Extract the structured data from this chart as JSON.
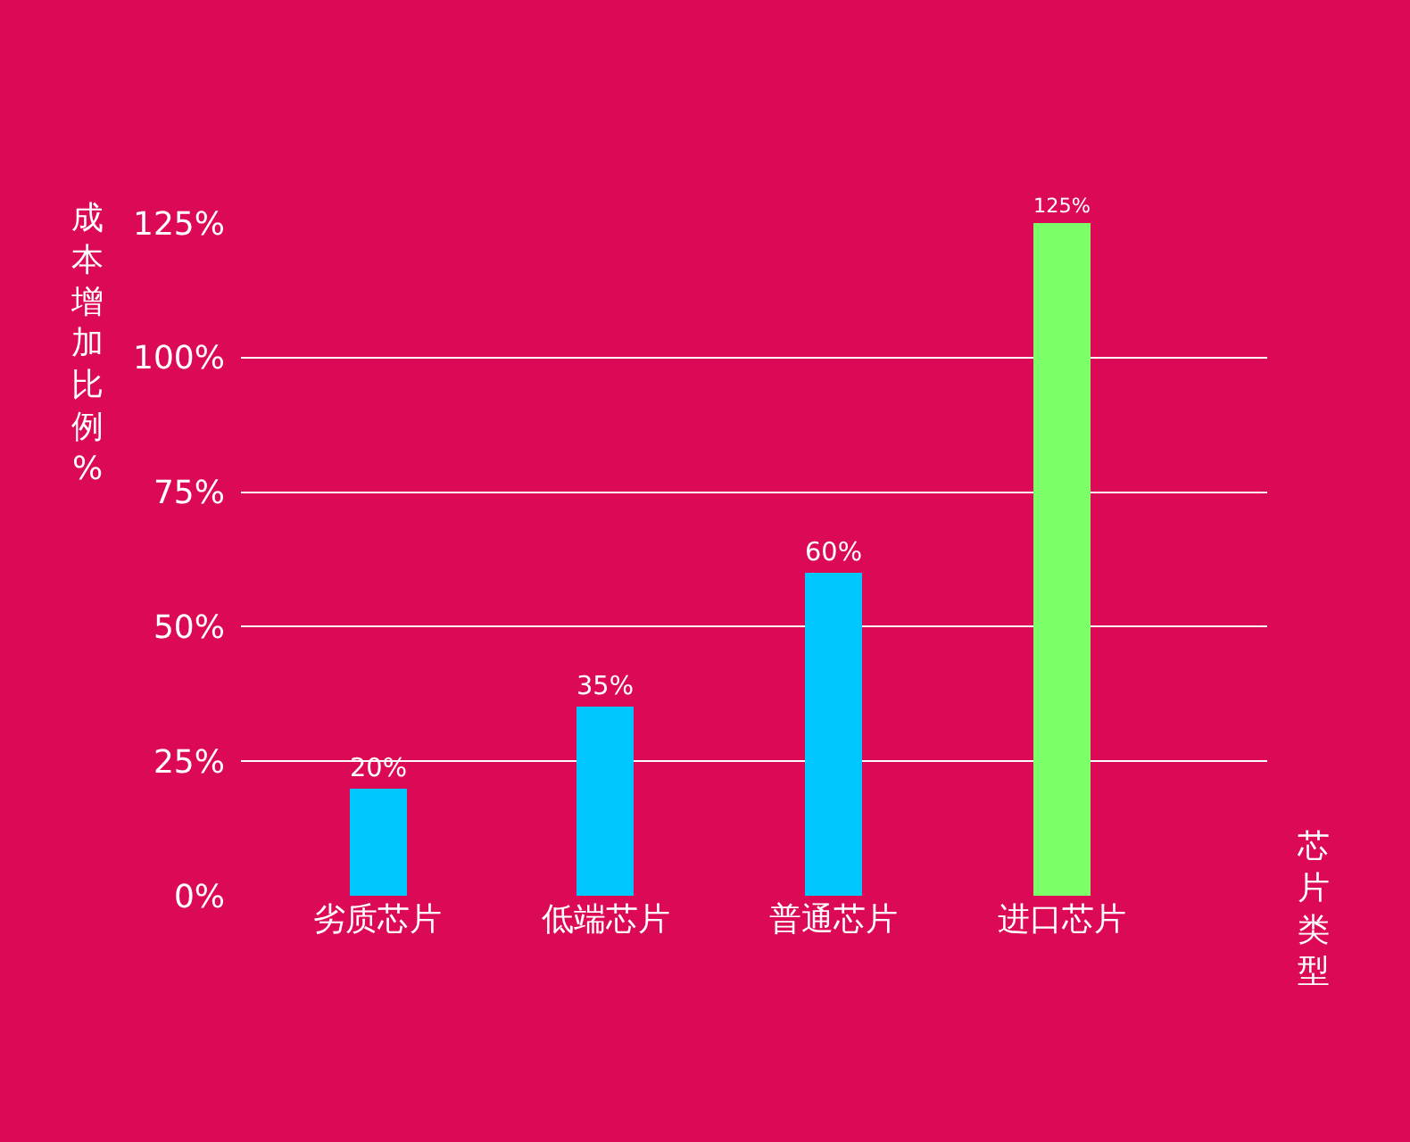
{
  "chart_data": {
    "type": "bar",
    "categories": [
      "劣质芯片",
      "低端芯片",
      "普通芯片",
      "进口芯片"
    ],
    "values": [
      20,
      35,
      60,
      125
    ],
    "value_labels": [
      "20%",
      "35%",
      "60%",
      "125%"
    ],
    "colors": [
      "#00c8ff",
      "#00c8ff",
      "#00c8ff",
      "#7dff6a"
    ],
    "ylabel": "成本增加比例%",
    "xlabel": "芯片类型",
    "ylim": [
      0,
      125
    ],
    "yticks": [
      {
        "value": 0,
        "label": "0%"
      },
      {
        "value": 25,
        "label": "25%"
      },
      {
        "value": 50,
        "label": "50%"
      },
      {
        "value": 75,
        "label": "75%"
      },
      {
        "value": 100,
        "label": "100%"
      },
      {
        "value": 125,
        "label": "125%"
      }
    ],
    "grid": "y",
    "legend": false
  }
}
